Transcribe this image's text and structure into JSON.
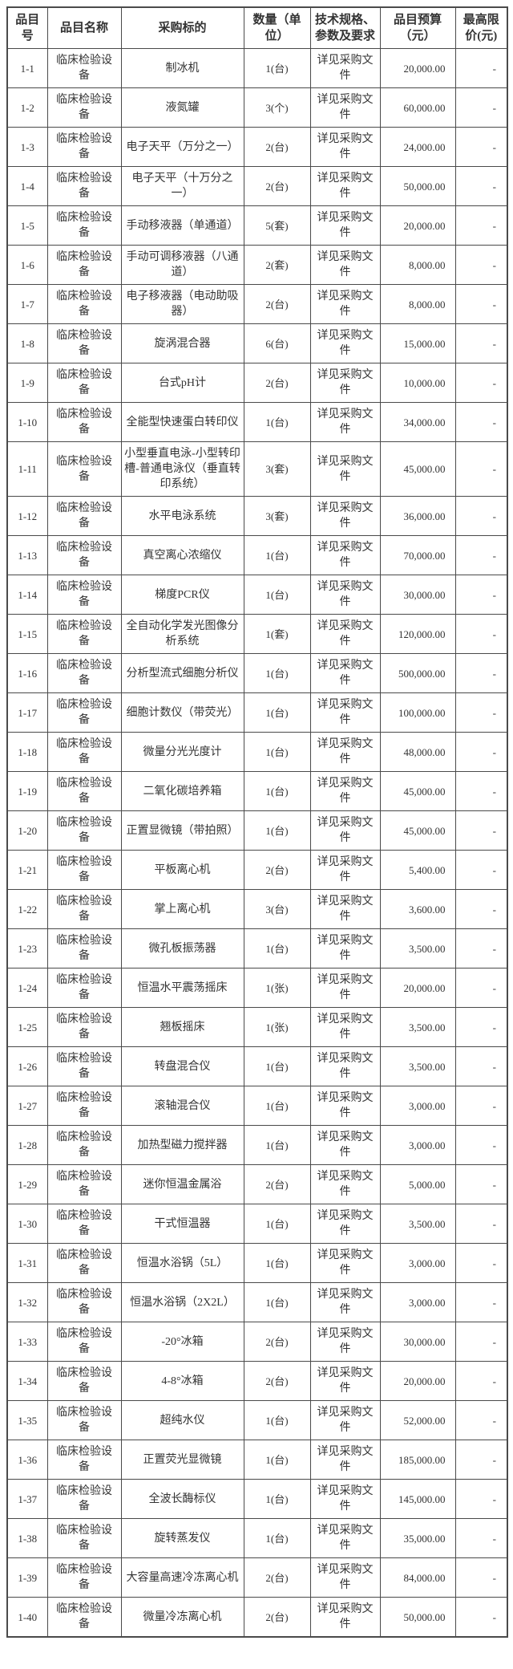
{
  "page": {
    "background_color": "#ffffff",
    "text_color": "#333333",
    "border_color": "#4a4a4a"
  },
  "table": {
    "headers": [
      "品目号",
      "品目名称",
      "采购标的",
      "数量（单位）",
      "技术规格、参数及要求",
      "品目预算（元）",
      "最高限价(元)"
    ],
    "rows": [
      [
        "1-1",
        "临床检验设备",
        "制冰机",
        "1(台)",
        "详见采购文件",
        "20,000.00",
        "-"
      ],
      [
        "1-2",
        "临床检验设备",
        "液氮罐",
        "3(个)",
        "详见采购文件",
        "60,000.00",
        "-"
      ],
      [
        "1-3",
        "临床检验设备",
        "电子天平（万分之一）",
        "2(台)",
        "详见采购文件",
        "24,000.00",
        "-"
      ],
      [
        "1-4",
        "临床检验设备",
        "电子天平（十万分之一）",
        "2(台)",
        "详见采购文件",
        "50,000.00",
        "-"
      ],
      [
        "1-5",
        "临床检验设备",
        "手动移液器（单通道）",
        "5(套)",
        "详见采购文件",
        "20,000.00",
        "-"
      ],
      [
        "1-6",
        "临床检验设备",
        "手动可调移液器（八通道）",
        "2(套)",
        "详见采购文件",
        "8,000.00",
        "-"
      ],
      [
        "1-7",
        "临床检验设备",
        "电子移液器（电动助吸器）",
        "2(台)",
        "详见采购文件",
        "8,000.00",
        "-"
      ],
      [
        "1-8",
        "临床检验设备",
        "旋涡混合器",
        "6(台)",
        "详见采购文件",
        "15,000.00",
        "-"
      ],
      [
        "1-9",
        "临床检验设备",
        "台式pH计",
        "2(台)",
        "详见采购文件",
        "10,000.00",
        "-"
      ],
      [
        "1-10",
        "临床检验设备",
        "全能型快速蛋白转印仪",
        "1(台)",
        "详见采购文件",
        "34,000.00",
        "-"
      ],
      [
        "1-11",
        "临床检验设备",
        "小型垂直电泳-小型转印槽-普通电泳仪（垂直转印系统）",
        "3(套)",
        "详见采购文件",
        "45,000.00",
        "-"
      ],
      [
        "1-12",
        "临床检验设备",
        "水平电泳系统",
        "3(套)",
        "详见采购文件",
        "36,000.00",
        "-"
      ],
      [
        "1-13",
        "临床检验设备",
        "真空离心浓缩仪",
        "1(台)",
        "详见采购文件",
        "70,000.00",
        "-"
      ],
      [
        "1-14",
        "临床检验设备",
        "梯度PCR仪",
        "1(台)",
        "详见采购文件",
        "30,000.00",
        "-"
      ],
      [
        "1-15",
        "临床检验设备",
        "全自动化学发光图像分析系统",
        "1(套)",
        "详见采购文件",
        "120,000.00",
        "-"
      ],
      [
        "1-16",
        "临床检验设备",
        "分析型流式细胞分析仪",
        "1(台)",
        "详见采购文件",
        "500,000.00",
        "-"
      ],
      [
        "1-17",
        "临床检验设备",
        "细胞计数仪（带荧光）",
        "1(台)",
        "详见采购文件",
        "100,000.00",
        "-"
      ],
      [
        "1-18",
        "临床检验设备",
        "微量分光光度计",
        "1(台)",
        "详见采购文件",
        "48,000.00",
        "-"
      ],
      [
        "1-19",
        "临床检验设备",
        "二氧化碳培养箱",
        "1(台)",
        "详见采购文件",
        "45,000.00",
        "-"
      ],
      [
        "1-20",
        "临床检验设备",
        "正置显微镜（带拍照）",
        "1(台)",
        "详见采购文件",
        "45,000.00",
        "-"
      ],
      [
        "1-21",
        "临床检验设备",
        "平板离心机",
        "2(台)",
        "详见采购文件",
        "5,400.00",
        "-"
      ],
      [
        "1-22",
        "临床检验设备",
        "掌上离心机",
        "3(台)",
        "详见采购文件",
        "3,600.00",
        "-"
      ],
      [
        "1-23",
        "临床检验设备",
        "微孔板振荡器",
        "1(台)",
        "详见采购文件",
        "3,500.00",
        "-"
      ],
      [
        "1-24",
        "临床检验设备",
        "恒温水平震荡摇床",
        "1(张)",
        "详见采购文件",
        "20,000.00",
        "-"
      ],
      [
        "1-25",
        "临床检验设备",
        "翘板摇床",
        "1(张)",
        "详见采购文件",
        "3,500.00",
        "-"
      ],
      [
        "1-26",
        "临床检验设备",
        "转盘混合仪",
        "1(台)",
        "详见采购文件",
        "3,500.00",
        "-"
      ],
      [
        "1-27",
        "临床检验设备",
        "滚轴混合仪",
        "1(台)",
        "详见采购文件",
        "3,000.00",
        "-"
      ],
      [
        "1-28",
        "临床检验设备",
        "加热型磁力搅拌器",
        "1(台)",
        "详见采购文件",
        "3,000.00",
        "-"
      ],
      [
        "1-29",
        "临床检验设备",
        "迷你恒温金属浴",
        "2(台)",
        "详见采购文件",
        "5,000.00",
        "-"
      ],
      [
        "1-30",
        "临床检验设备",
        "干式恒温器",
        "1(台)",
        "详见采购文件",
        "3,500.00",
        "-"
      ],
      [
        "1-31",
        "临床检验设备",
        "恒温水浴锅（5L）",
        "1(台)",
        "详见采购文件",
        "3,000.00",
        "-"
      ],
      [
        "1-32",
        "临床检验设备",
        "恒温水浴锅（2X2L）",
        "1(台)",
        "详见采购文件",
        "3,000.00",
        "-"
      ],
      [
        "1-33",
        "临床检验设备",
        "-20°冰箱",
        "2(台)",
        "详见采购文件",
        "30,000.00",
        "-"
      ],
      [
        "1-34",
        "临床检验设备",
        "4-8°冰箱",
        "2(台)",
        "详见采购文件",
        "20,000.00",
        "-"
      ],
      [
        "1-35",
        "临床检验设备",
        "超纯水仪",
        "1(台)",
        "详见采购文件",
        "52,000.00",
        "-"
      ],
      [
        "1-36",
        "临床检验设备",
        "正置荧光显微镜",
        "1(台)",
        "详见采购文件",
        "185,000.00",
        "-"
      ],
      [
        "1-37",
        "临床检验设备",
        "全波长酶标仪",
        "1(台)",
        "详见采购文件",
        "145,000.00",
        "-"
      ],
      [
        "1-38",
        "临床检验设备",
        "旋转蒸发仪",
        "1(台)",
        "详见采购文件",
        "35,000.00",
        "-"
      ],
      [
        "1-39",
        "临床检验设备",
        "大容量高速冷冻离心机",
        "2(台)",
        "详见采购文件",
        "84,000.00",
        "-"
      ],
      [
        "1-40",
        "临床检验设备",
        "微量冷冻离心机",
        "2(台)",
        "详见采购文件",
        "50,000.00",
        "-"
      ]
    ],
    "cell_names": [
      "cell-item-no",
      "cell-item-category",
      "cell-procurement-target",
      "cell-quantity",
      "cell-tech-spec",
      "cell-budget",
      "cell-max-price"
    ]
  }
}
